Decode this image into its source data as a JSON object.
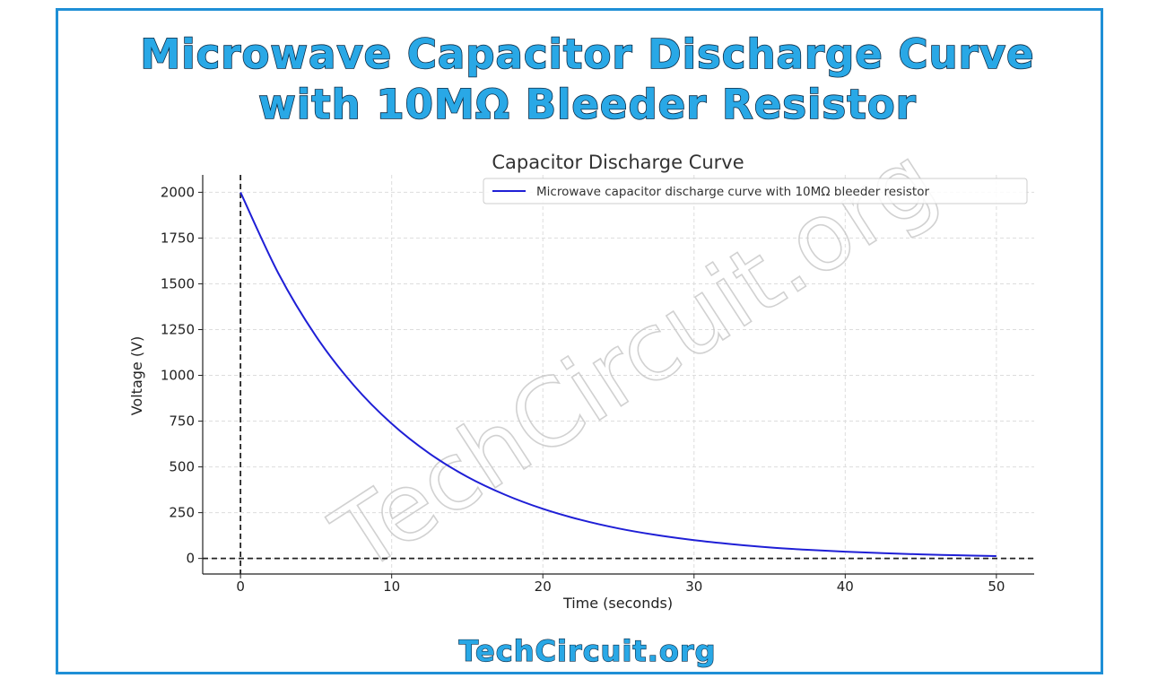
{
  "header": {
    "title_line1": "Microwave Capacitor Discharge Curve",
    "title_line2": "with 10MΩ Bleeder Resistor"
  },
  "footer": {
    "site": "TechCircuit.org"
  },
  "watermark": {
    "text": "TechCircuit.org"
  },
  "colors": {
    "frame": "#1f8fd6",
    "banner_fill": "#29a8e6",
    "banner_outline": "#0d2a44",
    "curve": "#1f1fd6"
  },
  "chart_data": {
    "type": "line",
    "title": "Capacitor Discharge Curve",
    "xlabel": "Time (seconds)",
    "ylabel": "Voltage (V)",
    "xlim": [
      -2.5,
      52.5
    ],
    "ylim": [
      -85,
      2095
    ],
    "x_ticks": [
      0,
      10,
      20,
      30,
      40,
      50
    ],
    "y_ticks": [
      0,
      250,
      500,
      750,
      1000,
      1250,
      1500,
      1750,
      2000
    ],
    "grid": true,
    "legend_position": "upper-right",
    "reference_lines": [
      {
        "orientation": "vertical",
        "x": 0,
        "style": "dashed"
      },
      {
        "orientation": "horizontal",
        "y": 0,
        "style": "dashed"
      }
    ],
    "series": [
      {
        "name": "Microwave capacitor discharge curve with 10MΩ bleeder resistor",
        "color": "#1f1fd6",
        "x": [
          0,
          2.5,
          5,
          7.5,
          10,
          12.5,
          15,
          17.5,
          20,
          22.5,
          25,
          27.5,
          30,
          32.5,
          35,
          37.5,
          40,
          42.5,
          45,
          47.5,
          50
        ],
        "y": [
          2000,
          1558,
          1213,
          945,
          736,
          573,
          446,
          348,
          271,
          211,
          164,
          128,
          100,
          78,
          60,
          47,
          37,
          29,
          22,
          17,
          13
        ]
      }
    ]
  }
}
